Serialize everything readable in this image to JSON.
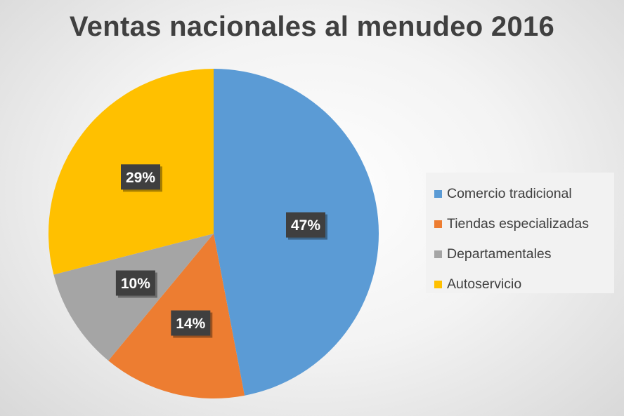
{
  "chart_data": {
    "type": "pie",
    "title": "Ventas nacionales al menudeo 2016",
    "categories": [
      "Comercio tradicional",
      "Tiendas especializadas",
      "Departamentales",
      "Autoservicio"
    ],
    "values": [
      47,
      14,
      10,
      29
    ],
    "value_labels": [
      "47%",
      "14%",
      "10%",
      "29%"
    ],
    "colors": [
      "#5b9bd5",
      "#ed7d31",
      "#a5a5a5",
      "#ffc000"
    ],
    "start_angle": "12 o'clock",
    "direction": "clockwise",
    "legend_position": "right"
  }
}
